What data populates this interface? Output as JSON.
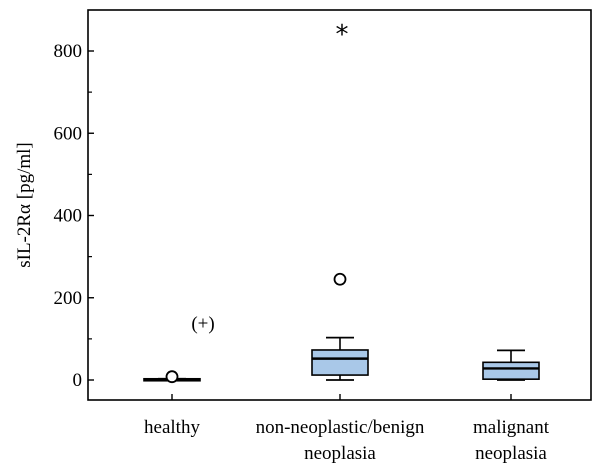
{
  "chart_data": {
    "type": "box",
    "ylabel": "sIL-2Rα [pg/ml]",
    "ylim": [
      -45,
      905
    ],
    "y_ticks": [
      0,
      200,
      400,
      600,
      800
    ],
    "y_tick_labels": [
      "0",
      "200",
      "400",
      "600",
      "800"
    ],
    "grid": false,
    "box_fill": "#a9c8e8",
    "categories": [
      {
        "lines": [
          "healthy"
        ]
      },
      {
        "lines": [
          "non-neoplastic/benign",
          "neoplasia"
        ]
      },
      {
        "lines": [
          "malignant",
          "neoplasia"
        ]
      }
    ],
    "boxes": [
      {
        "whisker_low": 0,
        "q1": 0,
        "median": 1,
        "q3": 3,
        "whisker_high": 3,
        "outliers": [
          8
        ],
        "extremes": []
      },
      {
        "whisker_low": 0,
        "q1": 12,
        "median": 52,
        "q3": 73,
        "whisker_high": 103,
        "outliers": [
          245
        ],
        "extremes": [
          853
        ]
      },
      {
        "whisker_low": 0,
        "q1": 2,
        "median": 28,
        "q3": 43,
        "whisker_high": 72,
        "outliers": [],
        "extremes": []
      }
    ],
    "annotations": [
      {
        "text": "(+)",
        "category": 0,
        "y": 140
      }
    ],
    "outlier_marker": "○",
    "extreme_marker": "*"
  }
}
